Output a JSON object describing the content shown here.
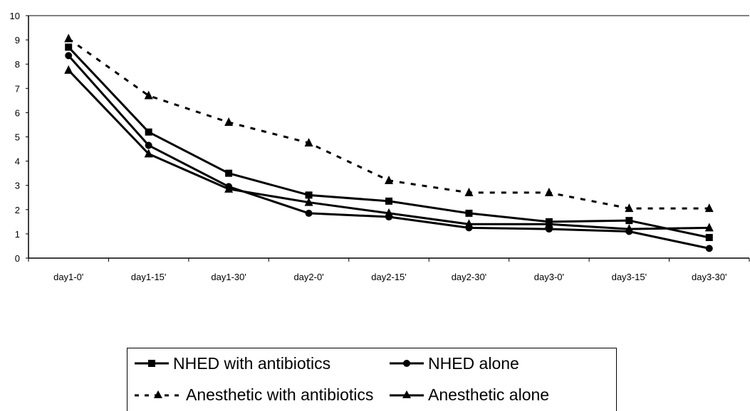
{
  "chart_data": {
    "type": "line",
    "categories": [
      "day1-0'",
      "day1-15'",
      "day1-30'",
      "day2-0'",
      "day2-15'",
      "day2-30'",
      "day3-0'",
      "day3-15'",
      "day3-30'"
    ],
    "ylim": [
      0,
      10
    ],
    "yticks": [
      "0",
      "1",
      "2",
      "3",
      "4",
      "5",
      "6",
      "7",
      "8",
      "9",
      "10"
    ],
    "grid": false,
    "legend_position": "bottom",
    "series": [
      {
        "name": "NHED with antibiotics",
        "marker": "square",
        "dash": false,
        "color": "#000000",
        "values": [
          8.7,
          5.2,
          3.5,
          2.6,
          2.35,
          1.85,
          1.5,
          1.55,
          0.85
        ]
      },
      {
        "name": "NHED alone",
        "marker": "circle",
        "dash": false,
        "color": "#000000",
        "values": [
          8.35,
          4.65,
          2.95,
          1.85,
          1.7,
          1.25,
          1.2,
          1.1,
          0.4
        ]
      },
      {
        "name": "Anesthetic with antibiotics",
        "marker": "triangle",
        "dash": true,
        "color": "#000000",
        "values": [
          9.05,
          6.7,
          5.6,
          4.75,
          3.2,
          2.7,
          2.7,
          2.05,
          2.05
        ]
      },
      {
        "name": "Anesthetic alone",
        "marker": "triangle",
        "dash": false,
        "color": "#000000",
        "values": [
          7.75,
          4.3,
          2.85,
          2.3,
          1.85,
          1.4,
          1.4,
          1.2,
          1.25
        ]
      }
    ]
  }
}
